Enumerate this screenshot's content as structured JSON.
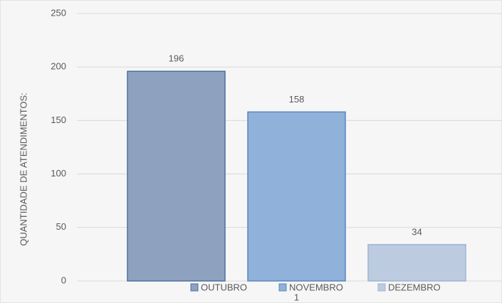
{
  "chart_data": {
    "type": "bar",
    "y_label": "QUANTIDADE DE ATENDIMENTOS:",
    "categories": [
      "1"
    ],
    "series": [
      {
        "name": "OUTUBRO",
        "color": "#8ea2c0",
        "values": [
          196
        ]
      },
      {
        "name": "NOVEMBRO",
        "color": "#8fb1da",
        "values": [
          158
        ]
      },
      {
        "name": "DEZEMBRO",
        "color": "#bccbe0",
        "values": [
          34
        ]
      }
    ],
    "ylim": [
      0,
      250
    ],
    "yticks": [
      0,
      50,
      100,
      150,
      200,
      250
    ],
    "grid": true,
    "legend": "bottom"
  }
}
